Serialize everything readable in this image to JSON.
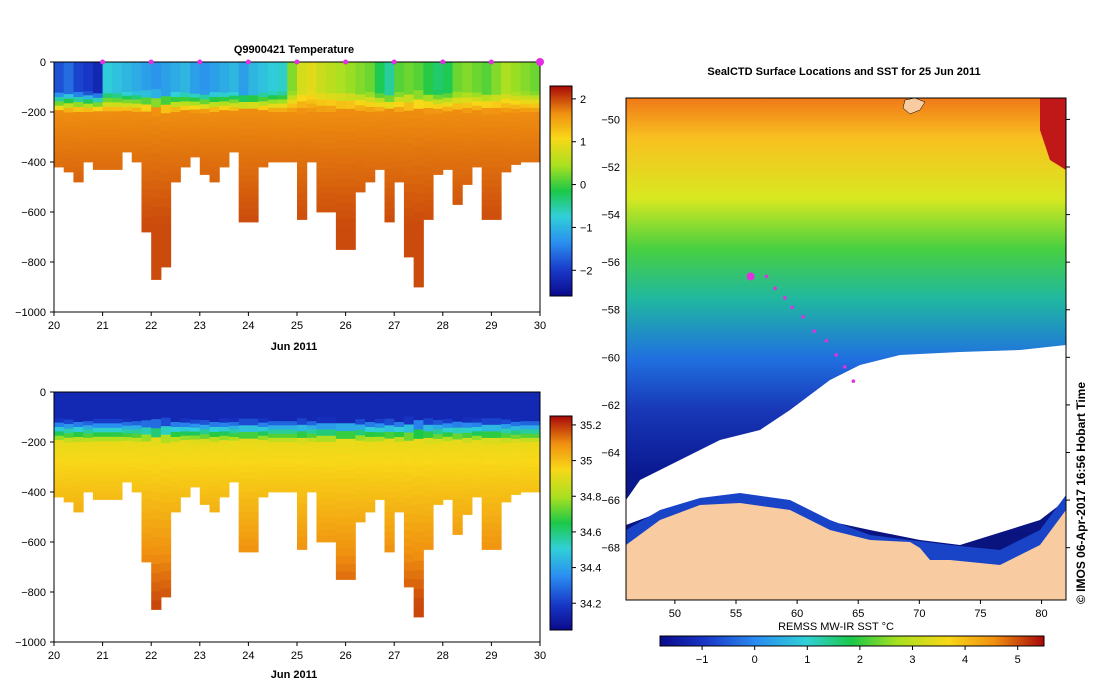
{
  "chart_data": [
    {
      "type": "heatmap",
      "title": "Q9900421  Temperature",
      "xlabel": "Jun 2011",
      "ylabel": "",
      "x_ticks": [
        "20",
        "21",
        "22",
        "23",
        "24",
        "25",
        "26",
        "27",
        "28",
        "29",
        "30"
      ],
      "y_ticks": [
        "0",
        "−200",
        "−400",
        "−600",
        "−800",
        "−1000"
      ],
      "xlim": [
        20,
        30
      ],
      "ylim": [
        -1000,
        0
      ],
      "colorbar": {
        "ticks": [
          "2",
          "1",
          "0",
          "−1",
          "−2"
        ],
        "values": [
          2,
          1,
          0,
          -1,
          -2
        ],
        "range": [
          -2.6,
          2.3
        ]
      },
      "surface_markers_days": [
        21,
        22,
        23,
        24,
        25,
        26,
        27,
        28,
        29,
        30
      ],
      "profiles": [
        {
          "x": 20.1,
          "max_depth": 420,
          "surface": -1.8
        },
        {
          "x": 20.3,
          "max_depth": 440,
          "surface": -1.6
        },
        {
          "x": 20.5,
          "max_depth": 480,
          "surface": -1.9
        },
        {
          "x": 20.7,
          "max_depth": 400,
          "surface": -2.0
        },
        {
          "x": 20.9,
          "max_depth": 430,
          "surface": -2.2
        },
        {
          "x": 21.1,
          "max_depth": 430,
          "surface": -0.8
        },
        {
          "x": 21.3,
          "max_depth": 430,
          "surface": -0.9
        },
        {
          "x": 21.5,
          "max_depth": 360,
          "surface": -1.0
        },
        {
          "x": 21.7,
          "max_depth": 400,
          "surface": -1.1
        },
        {
          "x": 21.9,
          "max_depth": 680,
          "surface": -1.2
        },
        {
          "x": 22.1,
          "max_depth": 870,
          "surface": -1.3
        },
        {
          "x": 22.3,
          "max_depth": 820,
          "surface": -1.2
        },
        {
          "x": 22.5,
          "max_depth": 480,
          "surface": -1.1
        },
        {
          "x": 22.7,
          "max_depth": 420,
          "surface": -1.0
        },
        {
          "x": 22.9,
          "max_depth": 380,
          "surface": -1.2
        },
        {
          "x": 23.1,
          "max_depth": 450,
          "surface": -1.3
        },
        {
          "x": 23.3,
          "max_depth": 480,
          "surface": -1.2
        },
        {
          "x": 23.5,
          "max_depth": 420,
          "surface": -1.1
        },
        {
          "x": 23.7,
          "max_depth": 360,
          "surface": -1.0
        },
        {
          "x": 23.9,
          "max_depth": 640,
          "surface": -1.2
        },
        {
          "x": 24.1,
          "max_depth": 640,
          "surface": -1.0
        },
        {
          "x": 24.3,
          "max_depth": 420,
          "surface": -0.9
        },
        {
          "x": 24.5,
          "max_depth": 400,
          "surface": -0.8
        },
        {
          "x": 24.7,
          "max_depth": 400,
          "surface": -0.7
        },
        {
          "x": 24.9,
          "max_depth": 400,
          "surface": 0.3
        },
        {
          "x": 25.1,
          "max_depth": 630,
          "surface": 0.8
        },
        {
          "x": 25.3,
          "max_depth": 400,
          "surface": 0.9
        },
        {
          "x": 25.5,
          "max_depth": 600,
          "surface": 0.7
        },
        {
          "x": 25.7,
          "max_depth": 600,
          "surface": 0.6
        },
        {
          "x": 25.9,
          "max_depth": 750,
          "surface": 0.5
        },
        {
          "x": 26.1,
          "max_depth": 750,
          "surface": 0.4
        },
        {
          "x": 26.3,
          "max_depth": 520,
          "surface": 0.3
        },
        {
          "x": 26.5,
          "max_depth": 480,
          "surface": 0.2
        },
        {
          "x": 26.7,
          "max_depth": 430,
          "surface": -0.2
        },
        {
          "x": 26.9,
          "max_depth": 640,
          "surface": -0.5
        },
        {
          "x": 27.1,
          "max_depth": 480,
          "surface": 0.1
        },
        {
          "x": 27.3,
          "max_depth": 780,
          "surface": 0.2
        },
        {
          "x": 27.5,
          "max_depth": 900,
          "surface": 0.1
        },
        {
          "x": 27.7,
          "max_depth": 630,
          "surface": -0.1
        },
        {
          "x": 27.9,
          "max_depth": 450,
          "surface": -0.3
        },
        {
          "x": 28.1,
          "max_depth": 430,
          "surface": -0.2
        },
        {
          "x": 28.3,
          "max_depth": 570,
          "surface": 0.2
        },
        {
          "x": 28.5,
          "max_depth": 490,
          "surface": 0.3
        },
        {
          "x": 28.7,
          "max_depth": 420,
          "surface": 0.2
        },
        {
          "x": 28.9,
          "max_depth": 630,
          "surface": 0.1
        },
        {
          "x": 29.1,
          "max_depth": 630,
          "surface": 0.3
        },
        {
          "x": 29.3,
          "max_depth": 440,
          "surface": 0.5
        },
        {
          "x": 29.5,
          "max_depth": 410,
          "surface": 0.4
        },
        {
          "x": 29.7,
          "max_depth": 400,
          "surface": 0.3
        },
        {
          "x": 29.9,
          "max_depth": 400,
          "surface": 0.2
        }
      ]
    },
    {
      "type": "heatmap",
      "title": "",
      "xlabel": "Jun 2011",
      "ylabel": "",
      "x_ticks": [
        "20",
        "21",
        "22",
        "23",
        "24",
        "25",
        "26",
        "27",
        "28",
        "29",
        "30"
      ],
      "y_ticks": [
        "0",
        "−200",
        "−400",
        "−600",
        "−800",
        "−1000"
      ],
      "xlim": [
        20,
        30
      ],
      "ylim": [
        -1000,
        0
      ],
      "colorbar": {
        "ticks": [
          "35.2",
          "35",
          "34.8",
          "34.6",
          "34.4",
          "34.2"
        ],
        "values": [
          35.2,
          35.0,
          34.8,
          34.6,
          34.4,
          34.2
        ],
        "range": [
          34.05,
          35.25
        ]
      }
    },
    {
      "type": "heatmap",
      "title": "SealCTD Surface Locations and SST for 25 Jun 2011",
      "xlabel": "",
      "ylabel": "",
      "x_ticks": [
        "50",
        "55",
        "60",
        "65",
        "70",
        "75",
        "80"
      ],
      "x_values": [
        50,
        55,
        60,
        65,
        70,
        75,
        80
      ],
      "y_ticks": [
        "−50",
        "−52",
        "−54",
        "−56",
        "−58",
        "−60",
        "−62",
        "−64",
        "−66",
        "−68"
      ],
      "y_values": [
        -50,
        -52,
        -54,
        -56,
        -58,
        -60,
        -62,
        -64,
        -66,
        -68
      ],
      "xlim": [
        46,
        82
      ],
      "ylim": [
        -70.2,
        -49.1
      ],
      "colorbar": {
        "label": "REMSS MW-IR SST °C",
        "ticks": [
          "−1",
          "0",
          "1",
          "2",
          "3",
          "4",
          "5"
        ],
        "values": [
          -1,
          0,
          1,
          2,
          3,
          4,
          5
        ],
        "range": [
          -1.8,
          5.5
        ]
      },
      "track": [
        {
          "lon": 56.2,
          "lat": -56.6
        },
        {
          "lon": 57.5,
          "lat": -56.6
        },
        {
          "lon": 58.2,
          "lat": -57.1
        },
        {
          "lon": 59.0,
          "lat": -57.5
        },
        {
          "lon": 59.6,
          "lat": -57.9
        },
        {
          "lon": 60.5,
          "lat": -58.3
        },
        {
          "lon": 61.4,
          "lat": -58.9
        },
        {
          "lon": 62.4,
          "lat": -59.3
        },
        {
          "lon": 63.2,
          "lat": -59.9
        },
        {
          "lon": 63.9,
          "lat": -60.4
        },
        {
          "lon": 64.6,
          "lat": -61.0
        }
      ],
      "current_position": {
        "lon": 56.2,
        "lat": -56.6
      }
    }
  ],
  "credit": "© IMOS 06-Apr-2017 16:56 Hobart Time"
}
